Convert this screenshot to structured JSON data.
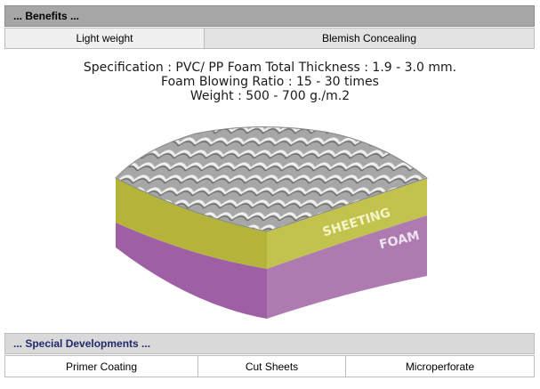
{
  "benefits": {
    "header": "... Benefits ...",
    "items": [
      "Light weight",
      "Blemish Concealing"
    ]
  },
  "spec": {
    "line1": "Specification : PVC/ PP Foam Total Thickness : 1.9 - 3.0 mm.",
    "line2": "Foam Blowing Ratio : 15 - 30 times",
    "line3": "Weight : 500 - 700 g./m.2"
  },
  "illustration": {
    "layer_top": "SHEETING",
    "layer_bottom": "FOAM",
    "colors": {
      "sheeting": "#b5b53a",
      "foam": "#a566a8",
      "texture": "#9a9a9a"
    }
  },
  "special": {
    "header": "... Special Developments ...",
    "items": [
      "Primer Coating",
      "Cut Sheets",
      "Microperforate"
    ]
  }
}
